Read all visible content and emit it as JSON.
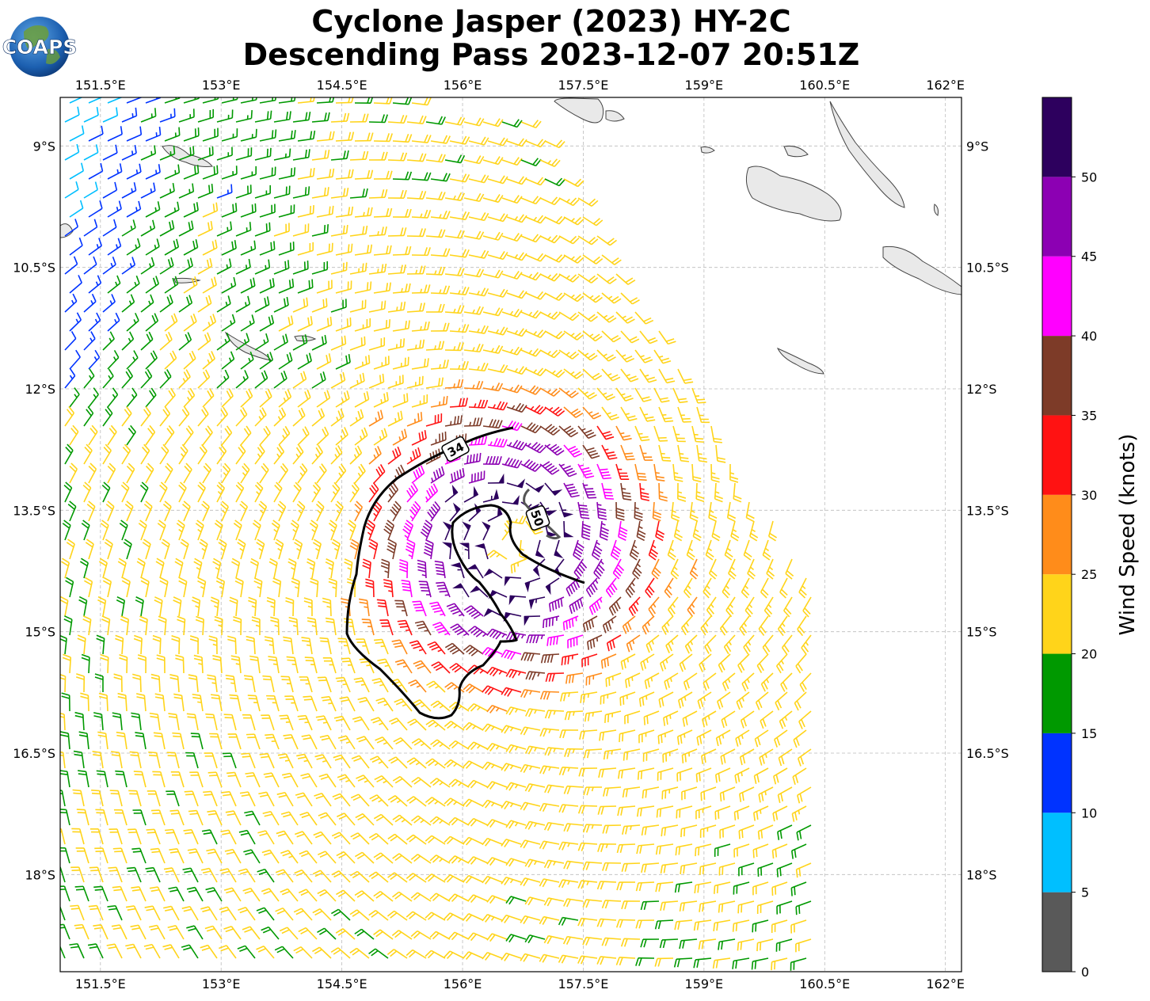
{
  "title": {
    "line1": "Cyclone Jasper (2023) HY-2C",
    "line2": "Descending Pass 2023-12-07 20:51Z"
  },
  "logo": {
    "text": "COAPS",
    "icon": "globe-icon"
  },
  "map": {
    "lon_range": [
      151.0,
      162.2
    ],
    "lat_range": [
      -19.2,
      -8.4
    ],
    "lon_ticks": [
      "151.5°E",
      "153°E",
      "154.5°E",
      "156°E",
      "157.5°E",
      "159°E",
      "160.5°E",
      "162°E"
    ],
    "lat_ticks": [
      "9°S",
      "10.5°S",
      "12°S",
      "13.5°S",
      "15°S",
      "16.5°S",
      "18°S"
    ],
    "grid": true,
    "swath": "descending scatterometer swath, wind barbs colored by speed",
    "storm_center": {
      "lon": 156.6,
      "lat": -13.9
    },
    "contours": [
      {
        "label": "34",
        "units": "knots"
      },
      {
        "label": "50",
        "units": "knots"
      }
    ]
  },
  "colorbar": {
    "label": "Wind Speed (knots)",
    "tick_labels": [
      "0",
      "5",
      "10",
      "15",
      "20",
      "25",
      "30",
      "35",
      "40",
      "45",
      "50"
    ],
    "bins": [
      {
        "min": 0,
        "max": 5,
        "color": "#595959"
      },
      {
        "min": 5,
        "max": 10,
        "color": "#00bfff"
      },
      {
        "min": 10,
        "max": 15,
        "color": "#0033ff"
      },
      {
        "min": 15,
        "max": 20,
        "color": "#009900"
      },
      {
        "min": 20,
        "max": 25,
        "color": "#ffd41a"
      },
      {
        "min": 25,
        "max": 30,
        "color": "#ff8c1a"
      },
      {
        "min": 30,
        "max": 35,
        "color": "#ff1212"
      },
      {
        "min": 35,
        "max": 40,
        "color": "#7d3b28"
      },
      {
        "min": 40,
        "max": 45,
        "color": "#ff00ff"
      },
      {
        "min": 45,
        "max": 50,
        "color": "#8c00b3"
      },
      {
        "min": 50,
        "max": 55,
        "color": "#2d005e"
      }
    ]
  }
}
